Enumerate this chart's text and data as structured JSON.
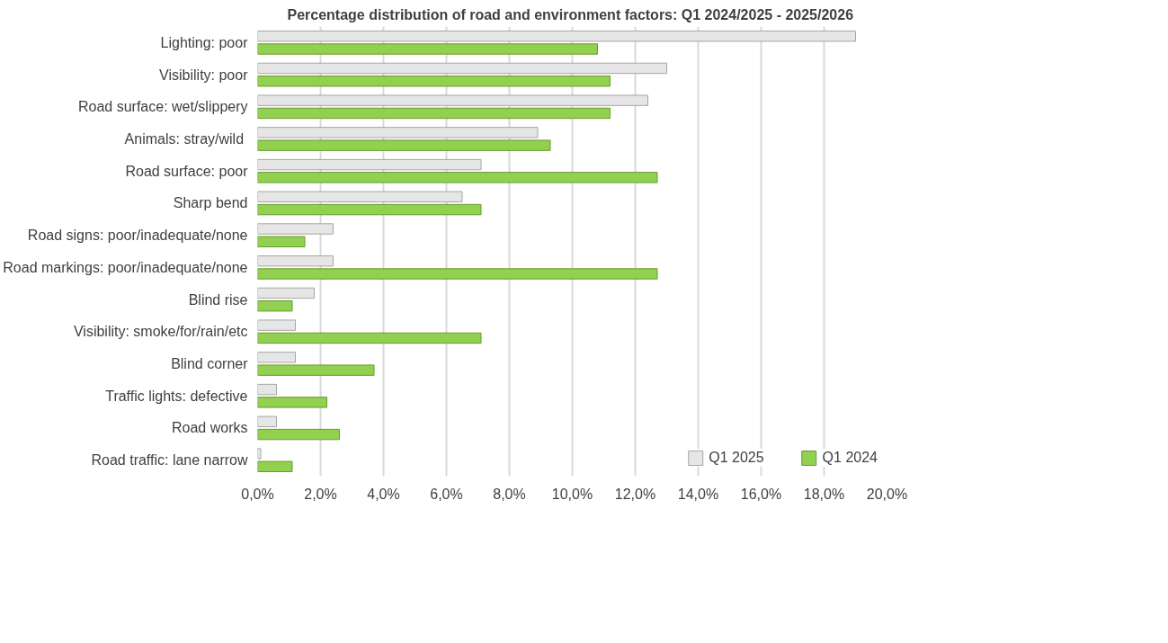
{
  "chart_data": {
    "type": "bar",
    "orientation": "horizontal",
    "title": "Percentage distribution of road and environment factors:  Q1 2024/2025 - 2025/2026",
    "categories": [
      "Lighting: poor",
      "Visibility: poor",
      "Road surface: wet/slippery",
      "Animals:  stray/wild",
      "Road surface: poor",
      "Sharp bend",
      "Road signs: poor/inadequate/none",
      "Road markings: poor/inadequate/none",
      "Blind rise",
      "Visibility: smoke/for/rain/etc",
      "Blind corner",
      "Traffic lights: defective",
      "Road works",
      "Road traffic: lane narrow"
    ],
    "series": [
      {
        "name": "Q1 2025",
        "color": "#e7e6e6",
        "values": [
          19.0,
          13.0,
          12.4,
          8.9,
          7.1,
          6.5,
          2.4,
          2.4,
          1.8,
          1.2,
          1.2,
          0.6,
          0.6,
          0.1
        ]
      },
      {
        "name": "Q1 2024",
        "color": "#92d050",
        "values": [
          10.8,
          11.2,
          11.2,
          9.3,
          12.7,
          7.1,
          1.5,
          12.7,
          1.1,
          7.1,
          3.7,
          2.2,
          2.6,
          1.1
        ]
      }
    ],
    "xlim": [
      0,
      20
    ],
    "xticks": [
      {
        "value": 0,
        "label": "0,0%"
      },
      {
        "value": 2,
        "label": "2,0%"
      },
      {
        "value": 4,
        "label": "4,0%"
      },
      {
        "value": 6,
        "label": "6,0%"
      },
      {
        "value": 8,
        "label": "8,0%"
      },
      {
        "value": 10,
        "label": "10,0%"
      },
      {
        "value": 12,
        "label": "12,0%"
      },
      {
        "value": 14,
        "label": "14,0%"
      },
      {
        "value": 16,
        "label": "16,0%"
      },
      {
        "value": 18,
        "label": "18,0%"
      },
      {
        "value": 20,
        "label": "20,0%"
      }
    ],
    "grid": "x",
    "legend": "bottom right"
  }
}
